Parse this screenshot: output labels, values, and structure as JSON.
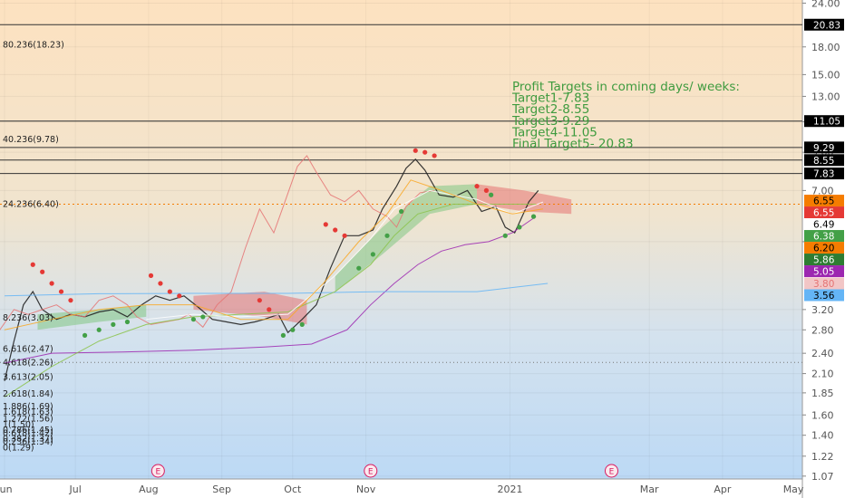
{
  "chart_data": {
    "type": "line",
    "scale": "log",
    "ylim": [
      1.05,
      24.5
    ],
    "y_ticks": [
      "24.00",
      "18.00",
      "15.00",
      "13.00",
      "11.00",
      "9.00",
      "7.00",
      "5.00",
      "3.20",
      "2.80",
      "2.40",
      "2.10",
      "1.85",
      "1.60",
      "1.40",
      "1.22",
      "1.07"
    ],
    "x_ticks": [
      {
        "label": "Jun",
        "day": 0
      },
      {
        "label": "Jul",
        "day": 30
      },
      {
        "label": "Aug",
        "day": 61
      },
      {
        "label": "Sep",
        "day": 92
      },
      {
        "label": "Oct",
        "day": 122
      },
      {
        "label": "Nov",
        "day": 153
      },
      {
        "label": "2021",
        "day": 214
      },
      {
        "label": "Mar",
        "day": 273
      },
      {
        "label": "Apr",
        "day": 304
      },
      {
        "label": "May",
        "day": 334
      }
    ],
    "earnings_markers": [
      {
        "label": "E",
        "day": 65
      },
      {
        "label": "E",
        "day": 155
      },
      {
        "label": "E",
        "day": 257
      }
    ],
    "horizontal_levels": [
      20.83,
      11.05,
      9.29,
      8.55,
      7.83
    ],
    "price_badges": [
      {
        "text": "20.83",
        "value": 20.83,
        "bg": "#000000",
        "fg": "#ffffff"
      },
      {
        "text": "11.05",
        "value": 11.05,
        "bg": "#000000",
        "fg": "#ffffff"
      },
      {
        "text": "9.29",
        "value": 9.29,
        "bg": "#000000",
        "fg": "#ffffff"
      },
      {
        "text": "8.55",
        "value": 8.55,
        "bg": "#000000",
        "fg": "#ffffff"
      },
      {
        "text": "7.83",
        "value": 7.83,
        "bg": "#000000",
        "fg": "#ffffff"
      },
      {
        "text": "6.55",
        "value": 6.55,
        "bg": "#f57c00",
        "fg": "#000000"
      },
      {
        "text": "6.55",
        "value": 6.55,
        "bg": "#e53935",
        "fg": "#ffffff"
      },
      {
        "text": "6.49",
        "value": 6.49,
        "bg": "#ffffff",
        "fg": "#000000"
      },
      {
        "text": "6.38",
        "value": 6.38,
        "bg": "#43a047",
        "fg": "#ffffff"
      },
      {
        "text": "6.20",
        "value": 6.2,
        "bg": "#f57c00",
        "fg": "#000000"
      },
      {
        "text": "5.86",
        "value": 5.86,
        "bg": "#2e7d32",
        "fg": "#ffffff"
      },
      {
        "text": "5.05",
        "value": 5.05,
        "bg": "#9c27b0",
        "fg": "#ffffff"
      },
      {
        "text": "3.80",
        "value": 3.8,
        "bg": "#f2c6c6",
        "fg": "#e57373"
      },
      {
        "text": "3.56",
        "value": 3.56,
        "bg": "#64b5f6",
        "fg": "#000000"
      }
    ],
    "fib_labels": [
      {
        "text": "80.236(18.23)",
        "value": 18.23,
        "color": "#000000"
      },
      {
        "text": "40.236(9.78)",
        "value": 9.78,
        "color": "#000000"
      },
      {
        "text": "24.236(6.40)",
        "value": 6.4,
        "color": "#000000"
      },
      {
        "text": "8.236(3.03)",
        "value": 3.03,
        "color": "#000000"
      },
      {
        "text": "6.616(2.47)",
        "value": 2.47,
        "color": "#000000"
      },
      {
        "text": "4.618(2.26)",
        "value": 2.26,
        "color": "#000000"
      },
      {
        "text": "3.613(2.05)",
        "value": 2.05,
        "color": "#000000"
      },
      {
        "text": "2.618(1.84)",
        "value": 1.84,
        "color": "#000000"
      },
      {
        "text": "1.886(1.69)",
        "value": 1.69,
        "color": "#000000"
      },
      {
        "text": "1.618(1.63)",
        "value": 1.63,
        "color": "#000000"
      },
      {
        "text": "1.272(1.56)",
        "value": 1.56,
        "color": "#000000"
      },
      {
        "text": "1(1.50)",
        "value": 1.5,
        "color": "#000000"
      },
      {
        "text": "0.786(1.45)",
        "value": 1.45,
        "color": "#000000"
      },
      {
        "text": "0.618(1.42)",
        "value": 1.42,
        "color": "#000000"
      },
      {
        "text": "0.382(1.37)",
        "value": 1.37,
        "color": "#000000"
      },
      {
        "text": "0.236(1.34)",
        "value": 1.34,
        "color": "#000000"
      },
      {
        "text": "0(1.29)",
        "value": 1.29,
        "color": "#000000"
      }
    ],
    "annotation_lines": [
      "Profit Targets in coming days/ weeks:",
      "Target1-7.83",
      "Target2-8.55",
      "Target3-9.29",
      "Target4-11.05",
      "Final Target5- 20.83"
    ],
    "series": [
      {
        "kind": "price",
        "color": "#222222",
        "points": [
          [
            0,
            2.0
          ],
          [
            4,
            2.6
          ],
          [
            8,
            3.3
          ],
          [
            12,
            3.6
          ],
          [
            16,
            3.2
          ],
          [
            22,
            3.0
          ],
          [
            28,
            3.1
          ],
          [
            34,
            3.05
          ],
          [
            40,
            3.15
          ],
          [
            46,
            3.2
          ],
          [
            52,
            3.05
          ],
          [
            58,
            3.3
          ],
          [
            64,
            3.5
          ],
          [
            70,
            3.4
          ],
          [
            76,
            3.5
          ],
          [
            82,
            3.25
          ],
          [
            88,
            3.0
          ],
          [
            94,
            2.95
          ],
          [
            100,
            2.9
          ],
          [
            106,
            2.95
          ],
          [
            110,
            3.0
          ],
          [
            116,
            3.1
          ],
          [
            120,
            2.75
          ],
          [
            126,
            3.0
          ],
          [
            132,
            3.3
          ],
          [
            138,
            4.2
          ],
          [
            144,
            5.2
          ],
          [
            150,
            5.2
          ],
          [
            156,
            5.4
          ],
          [
            160,
            6.2
          ],
          [
            166,
            7.2
          ],
          [
            170,
            8.1
          ],
          [
            174,
            8.6
          ],
          [
            178,
            8.0
          ],
          [
            184,
            6.8
          ],
          [
            190,
            6.7
          ],
          [
            196,
            7.0
          ],
          [
            202,
            6.1
          ],
          [
            208,
            6.3
          ],
          [
            212,
            5.5
          ],
          [
            216,
            5.3
          ],
          [
            222,
            6.5
          ],
          [
            226,
            7.0
          ]
        ]
      },
      {
        "kind": "lagging_span",
        "color": "#e57373",
        "points": [
          [
            -26,
            2.7
          ],
          [
            -20,
            3.6
          ],
          [
            -14,
            3.5
          ],
          [
            -8,
            3.0
          ],
          [
            -2,
            2.8
          ],
          [
            4,
            3.2
          ],
          [
            10,
            3.1
          ],
          [
            16,
            3.2
          ],
          [
            22,
            3.3
          ],
          [
            28,
            3.1
          ],
          [
            34,
            3.05
          ],
          [
            40,
            3.4
          ],
          [
            46,
            3.5
          ],
          [
            52,
            3.3
          ],
          [
            56,
            3.05
          ],
          [
            62,
            2.9
          ],
          [
            68,
            2.95
          ],
          [
            74,
            3.0
          ],
          [
            78,
            3.1
          ],
          [
            84,
            2.85
          ],
          [
            90,
            3.3
          ],
          [
            96,
            3.6
          ],
          [
            102,
            4.8
          ],
          [
            108,
            6.2
          ],
          [
            114,
            5.3
          ],
          [
            118,
            6.3
          ],
          [
            124,
            8.2
          ],
          [
            128,
            8.8
          ],
          [
            132,
            7.9
          ],
          [
            138,
            6.8
          ],
          [
            144,
            6.5
          ],
          [
            150,
            7.0
          ],
          [
            156,
            6.2
          ],
          [
            162,
            5.9
          ],
          [
            166,
            5.5
          ],
          [
            170,
            6.3
          ],
          [
            176,
            6.9
          ],
          [
            182,
            7.0
          ]
        ]
      },
      {
        "kind": "moving_average",
        "color": "#9c27b0",
        "points": [
          [
            0,
            2.25
          ],
          [
            20,
            2.4
          ],
          [
            50,
            2.42
          ],
          [
            80,
            2.45
          ],
          [
            110,
            2.5
          ],
          [
            130,
            2.55
          ],
          [
            145,
            2.8
          ],
          [
            155,
            3.3
          ],
          [
            165,
            3.8
          ],
          [
            175,
            4.3
          ],
          [
            185,
            4.7
          ],
          [
            195,
            4.9
          ],
          [
            205,
            5.0
          ],
          [
            215,
            5.3
          ],
          [
            225,
            5.9
          ]
        ]
      },
      {
        "kind": "moving_average",
        "color": "#64b5f6",
        "points": [
          [
            0,
            3.5
          ],
          [
            40,
            3.55
          ],
          [
            80,
            3.56
          ],
          [
            120,
            3.56
          ],
          [
            160,
            3.6
          ],
          [
            200,
            3.6
          ],
          [
            230,
            3.8
          ]
        ]
      },
      {
        "kind": "moving_average",
        "color": "#8bc34a",
        "points": [
          [
            0,
            1.8
          ],
          [
            20,
            2.2
          ],
          [
            40,
            2.6
          ],
          [
            60,
            2.9
          ],
          [
            80,
            3.05
          ],
          [
            100,
            3.1
          ],
          [
            120,
            3.15
          ],
          [
            140,
            3.6
          ],
          [
            155,
            4.3
          ],
          [
            165,
            5.2
          ],
          [
            175,
            6.0
          ],
          [
            190,
            6.4
          ],
          [
            210,
            6.4
          ],
          [
            225,
            6.4
          ]
        ]
      },
      {
        "kind": "moving_average",
        "color": "#ffffff",
        "points": [
          [
            60,
            3.0
          ],
          [
            80,
            3.1
          ],
          [
            100,
            3.05
          ],
          [
            120,
            3.1
          ],
          [
            140,
            4.0
          ],
          [
            155,
            5.1
          ],
          [
            165,
            6.2
          ],
          [
            180,
            7.0
          ],
          [
            200,
            6.6
          ],
          [
            215,
            6.0
          ],
          [
            228,
            6.49
          ]
        ]
      },
      {
        "kind": "base_line",
        "color": "#f9a825",
        "points": [
          [
            0,
            2.8
          ],
          [
            20,
            3.0
          ],
          [
            40,
            3.2
          ],
          [
            60,
            3.3
          ],
          [
            80,
            3.3
          ],
          [
            100,
            3.0
          ],
          [
            120,
            3.0
          ],
          [
            135,
            3.8
          ],
          [
            150,
            5.0
          ],
          [
            162,
            6.0
          ],
          [
            172,
            7.5
          ],
          [
            185,
            7.0
          ],
          [
            200,
            6.4
          ],
          [
            215,
            6.0
          ],
          [
            228,
            6.2
          ]
        ]
      }
    ],
    "cloud_bands": [
      {
        "color": "#81c784",
        "upper": [
          [
            14,
            3.1
          ],
          [
            40,
            3.2
          ],
          [
            60,
            3.3
          ]
        ],
        "lower": [
          [
            14,
            2.8
          ],
          [
            40,
            2.95
          ],
          [
            60,
            3.05
          ]
        ]
      },
      {
        "color": "#e57373",
        "upper": [
          [
            80,
            3.5
          ],
          [
            110,
            3.6
          ],
          [
            128,
            3.4
          ]
        ],
        "lower": [
          [
            80,
            3.2
          ],
          [
            110,
            3.05
          ],
          [
            128,
            2.9
          ]
        ]
      },
      {
        "color": "#81c784",
        "upper": [
          [
            140,
            4.0
          ],
          [
            160,
            5.5
          ],
          [
            180,
            7.2
          ],
          [
            200,
            7.3
          ]
        ],
        "lower": [
          [
            140,
            3.6
          ],
          [
            160,
            4.6
          ],
          [
            180,
            6.0
          ],
          [
            200,
            6.4
          ]
        ]
      },
      {
        "color": "#e57373",
        "upper": [
          [
            200,
            7.3
          ],
          [
            220,
            7.0
          ],
          [
            240,
            6.6
          ]
        ],
        "lower": [
          [
            200,
            6.4
          ],
          [
            220,
            6.1
          ],
          [
            240,
            6.0
          ]
        ]
      }
    ],
    "psar_dots": [
      {
        "color": "#e53935",
        "points": [
          [
            12,
            4.3
          ],
          [
            16,
            4.1
          ],
          [
            20,
            3.8
          ],
          [
            24,
            3.6
          ],
          [
            28,
            3.4
          ],
          [
            62,
            4.0
          ],
          [
            66,
            3.8
          ],
          [
            70,
            3.6
          ],
          [
            74,
            3.5
          ],
          [
            108,
            3.4
          ],
          [
            112,
            3.2
          ],
          [
            136,
            5.6
          ],
          [
            140,
            5.4
          ],
          [
            144,
            5.2
          ],
          [
            174,
            9.1
          ],
          [
            178,
            9.0
          ],
          [
            182,
            8.8
          ],
          [
            200,
            7.2
          ],
          [
            204,
            7.0
          ]
        ]
      },
      {
        "color": "#43a047",
        "points": [
          [
            34,
            2.7
          ],
          [
            40,
            2.8
          ],
          [
            46,
            2.9
          ],
          [
            52,
            2.95
          ],
          [
            80,
            3.0
          ],
          [
            84,
            3.05
          ],
          [
            118,
            2.7
          ],
          [
            122,
            2.8
          ],
          [
            126,
            2.9
          ],
          [
            150,
            4.2
          ],
          [
            156,
            4.6
          ],
          [
            162,
            5.2
          ],
          [
            168,
            6.1
          ],
          [
            206,
            6.8
          ],
          [
            212,
            5.2
          ],
          [
            218,
            5.5
          ],
          [
            224,
            5.9
          ]
        ]
      }
    ]
  }
}
